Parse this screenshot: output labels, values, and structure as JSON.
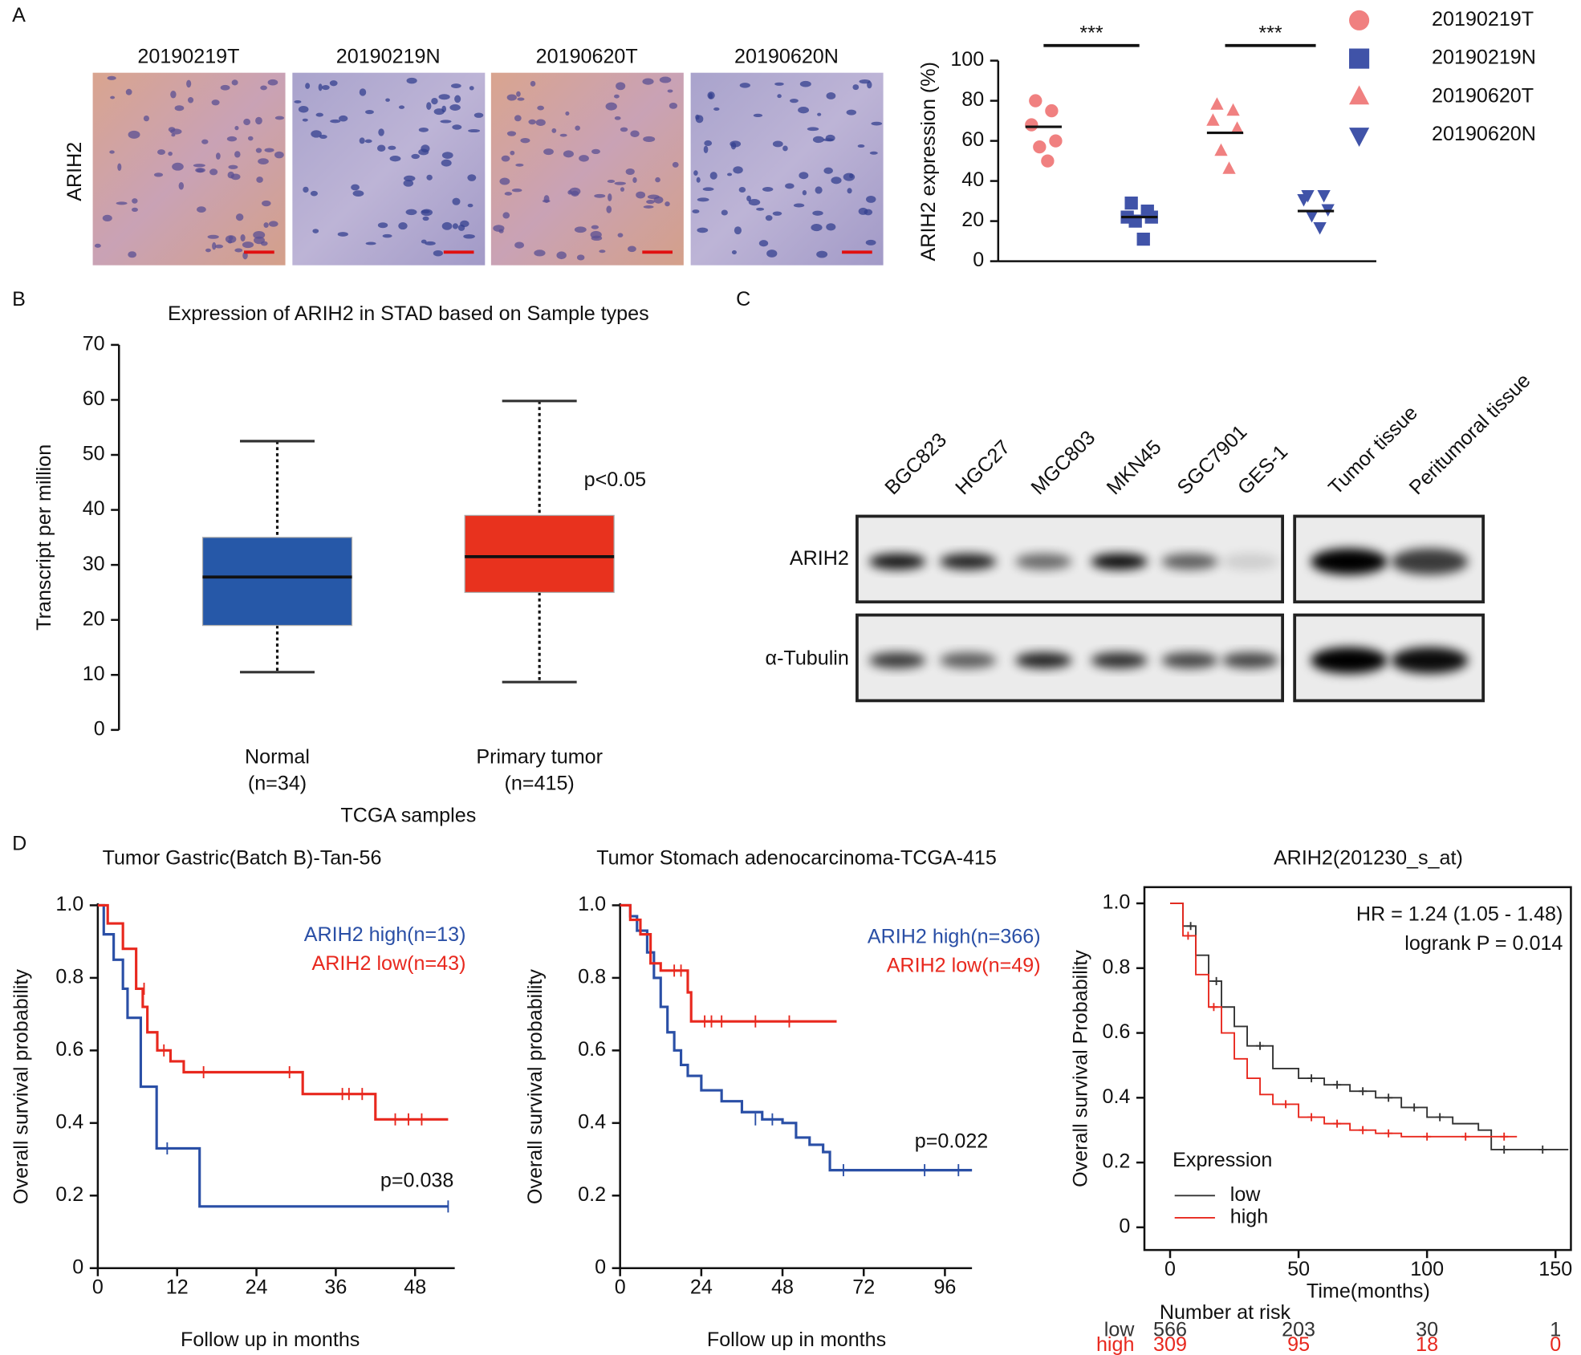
{
  "panel_labels": [
    "A",
    "B",
    "C",
    "D"
  ],
  "histology": {
    "row_label": "ARIH2",
    "samples": [
      "20190219T",
      "20190219N",
      "20190620T",
      "20190620N"
    ]
  },
  "western_blot": {
    "lanes": [
      "BGC823",
      "HGC27",
      "MGC803",
      "MKN45",
      "SGC7901",
      "GES-1",
      "Tumor tissue",
      "Peritumoral tissue"
    ],
    "proteins": [
      "ARIH2",
      "α-Tubulin"
    ]
  },
  "chart_data": [
    {
      "type": "strip",
      "ylabel": "ARIH2 expression (%)",
      "ylim": [
        0,
        100
      ],
      "yticks": [
        0,
        20,
        40,
        60,
        80,
        100
      ],
      "legend": "right",
      "annotations": [
        "***",
        "***"
      ],
      "series": [
        {
          "name": "20190219T",
          "color": "#f08080",
          "marker": "circle",
          "values": [
            80,
            75,
            68,
            60,
            57,
            50
          ],
          "center": 67
        },
        {
          "name": "20190219N",
          "color": "#4053a8",
          "marker": "square",
          "values": [
            29,
            25,
            22,
            22,
            20,
            11
          ],
          "center": 22
        },
        {
          "name": "20190620T",
          "color": "#f08080",
          "marker": "triangle-up",
          "values": [
            78,
            75,
            70,
            66,
            55,
            46
          ],
          "center": 64
        },
        {
          "name": "20190620N",
          "color": "#4053a8",
          "marker": "triangle-down",
          "values": [
            33,
            33,
            31,
            26,
            23,
            17
          ],
          "center": 25
        }
      ]
    },
    {
      "type": "box",
      "title": "Expression of ARIH2 in STAD based on Sample types",
      "ylabel": "Transcript per million",
      "xlabel": "TCGA samples",
      "categories": [
        "Normal",
        "Primary tumor"
      ],
      "category_notes": [
        "(n=34)",
        "(n=415)"
      ],
      "colors": [
        "#2658a8",
        "#e8321e"
      ],
      "min": [
        10.5,
        8.7
      ],
      "q1": [
        19,
        25
      ],
      "median": [
        27.8,
        31.5
      ],
      "q3": [
        35,
        39
      ],
      "max": [
        52.5,
        59.8
      ],
      "annotations": [
        "p<0.05"
      ],
      "ylim": [
        0,
        70
      ],
      "yticks": [
        0,
        10,
        20,
        30,
        40,
        50,
        60,
        70
      ]
    },
    {
      "type": "survival",
      "title": "Tumor Gastric(Batch B)-Tan-56",
      "xlabel": "Follow up in months",
      "ylabel": "Overall survival probability",
      "xlim": [
        0,
        54
      ],
      "xticks": [
        0,
        12,
        24,
        36,
        48
      ],
      "ylim": [
        0,
        1
      ],
      "yticks": [
        0,
        0.2,
        0.4,
        0.6,
        0.8,
        {
          "value": 1,
          "label": "1.0"
        }
      ],
      "legend": "upper right",
      "annotations": [
        "p=0.038"
      ],
      "series": [
        {
          "name": "ARIH2 high(n=13)",
          "color": "#2a4fa6",
          "x": [
            0,
            0.9,
            2.4,
            3.8,
            4.5,
            6.5,
            8.9,
            15.4,
            53
          ],
          "values": [
            1,
            0.92,
            0.85,
            0.77,
            0.69,
            0.5,
            0.33,
            0.17,
            0.17
          ],
          "censor_x": [
            10.5,
            53
          ],
          "censor_values": [
            0.33,
            0.17
          ]
        },
        {
          "name": "ARIH2 low(n=43)",
          "color": "#e8281e",
          "x": [
            0,
            1.5,
            3.8,
            5.8,
            6.8,
            7.5,
            9,
            11,
            13,
            31,
            42,
            53
          ],
          "values": [
            1,
            0.95,
            0.88,
            0.77,
            0.72,
            0.65,
            0.6,
            0.57,
            0.54,
            0.48,
            0.41,
            0.41
          ],
          "censor_x": [
            7,
            10,
            16,
            29,
            37,
            38,
            40,
            45,
            47,
            49
          ],
          "censor_values": [
            0.77,
            0.6,
            0.54,
            0.54,
            0.48,
            0.48,
            0.48,
            0.41,
            0.41,
            0.41
          ]
        }
      ]
    },
    {
      "type": "survival",
      "title": "Tumor Stomach adenocarcinoma-TCGA-415",
      "xlabel": "Follow up in months",
      "ylabel": "Overall survival probability",
      "xlim": [
        0,
        104
      ],
      "xticks": [
        0,
        24,
        48,
        72,
        96
      ],
      "ylim": [
        0,
        1
      ],
      "yticks": [
        0,
        0.2,
        0.4,
        0.6,
        0.8,
        {
          "value": 1,
          "label": "1.0"
        }
      ],
      "legend": "upper right",
      "annotations": [
        "p=0.022"
      ],
      "series": [
        {
          "name": "ARIH2 high(n=366)",
          "color": "#2a4fa6",
          "x": [
            0,
            3,
            5,
            8,
            10,
            12,
            14,
            16,
            18,
            20,
            24,
            30,
            36,
            42,
            48,
            52,
            56,
            60,
            62,
            104
          ],
          "values": [
            1,
            0.97,
            0.93,
            0.87,
            0.8,
            0.72,
            0.65,
            0.6,
            0.56,
            0.53,
            0.49,
            0.46,
            0.43,
            0.41,
            0.4,
            0.36,
            0.34,
            0.32,
            0.27,
            0.27
          ],
          "censor_x": [
            40,
            45,
            66,
            90,
            100
          ],
          "censor_values": [
            0.41,
            0.41,
            0.27,
            0.27,
            0.27
          ]
        },
        {
          "name": "ARIH2 low(n=49)",
          "color": "#e8281e",
          "x": [
            0,
            3,
            6,
            9,
            12,
            20,
            21,
            64
          ],
          "values": [
            1,
            0.96,
            0.92,
            0.84,
            0.82,
            0.76,
            0.68,
            0.68
          ],
          "censor_x": [
            16,
            18,
            25,
            27,
            30,
            40,
            50
          ],
          "censor_values": [
            0.82,
            0.82,
            0.68,
            0.68,
            0.68,
            0.68,
            0.68
          ]
        }
      ]
    },
    {
      "type": "survival",
      "title": "ARIH2(201230_s_at)",
      "xlabel": "Time(months)",
      "ylabel": "Overall survival Probability",
      "xlim": [
        -10,
        156
      ],
      "xticks": [
        0,
        50,
        100,
        150
      ],
      "ylim": [
        -0.07,
        1.05
      ],
      "yticks": [
        0,
        0.2,
        0.4,
        0.6,
        0.8,
        {
          "value": 1,
          "label": "1.0"
        }
      ],
      "legend": "lower left",
      "legend_title": "Expression",
      "annotations": [
        "HR = 1.24 (1.05 - 1.48)",
        "logrank P = 0.014"
      ],
      "series": [
        {
          "name": "low",
          "color": "#333333",
          "x": [
            0,
            5,
            10,
            15,
            20,
            25,
            30,
            40,
            50,
            60,
            70,
            80,
            90,
            100,
            110,
            120,
            125,
            155
          ],
          "values": [
            1,
            0.93,
            0.84,
            0.76,
            0.68,
            0.62,
            0.56,
            0.49,
            0.46,
            0.44,
            0.42,
            0.4,
            0.37,
            0.34,
            0.32,
            0.3,
            0.24,
            0.24
          ],
          "censor_x": [
            8,
            18,
            35,
            55,
            65,
            75,
            85,
            95,
            105,
            130,
            145
          ],
          "censor_values": [
            0.93,
            0.76,
            0.56,
            0.46,
            0.44,
            0.42,
            0.4,
            0.37,
            0.34,
            0.24,
            0.24
          ]
        },
        {
          "name": "high",
          "color": "#e8281e",
          "x": [
            0,
            5,
            10,
            15,
            20,
            25,
            30,
            35,
            40,
            50,
            60,
            70,
            80,
            90,
            135
          ],
          "values": [
            1,
            0.9,
            0.78,
            0.68,
            0.6,
            0.52,
            0.46,
            0.41,
            0.38,
            0.34,
            0.32,
            0.3,
            0.29,
            0.28,
            0.28
          ],
          "censor_x": [
            7,
            17,
            45,
            55,
            65,
            75,
            85,
            100,
            115,
            130
          ],
          "censor_values": [
            0.9,
            0.68,
            0.38,
            0.34,
            0.32,
            0.3,
            0.29,
            0.28,
            0.28,
            0.28
          ]
        }
      ],
      "risk_table": {
        "title": "Number at risk",
        "x": [
          0,
          50,
          100,
          150
        ],
        "counts": [
          [
            566,
            203,
            30,
            1
          ],
          [
            309,
            95,
            18,
            0
          ]
        ]
      }
    }
  ]
}
